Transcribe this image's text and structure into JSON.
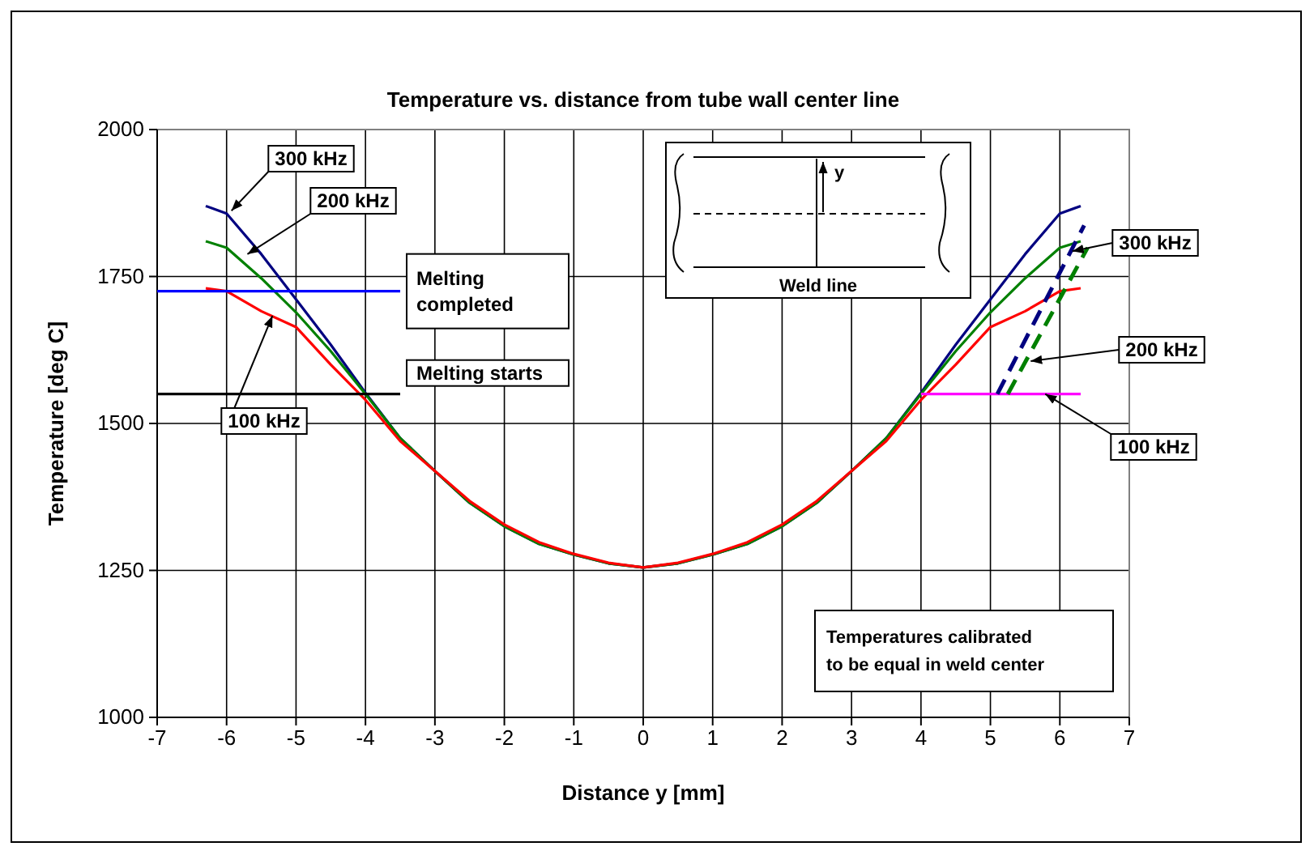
{
  "chart_data": {
    "type": "line",
    "title": "Temperature vs. distance from tube wall center line",
    "xlabel": "Distance y [mm]",
    "ylabel": "Temperature [deg C]",
    "xlim": [
      -7,
      7
    ],
    "xticks": [
      -7,
      -6,
      -5,
      -4,
      -3,
      -2,
      -1,
      0,
      1,
      2,
      3,
      4,
      5,
      6,
      7
    ],
    "ylim": [
      1000,
      2000
    ],
    "yticks": [
      1000,
      1250,
      1500,
      1750,
      2000
    ],
    "grid": true,
    "series": [
      {
        "color": "#000080",
        "x": [
          -6.3,
          -6,
          -5.5,
          -5,
          -4.5,
          -4,
          -3.5,
          -3,
          -2.5,
          -2,
          -1.5,
          -1,
          -0.5,
          0,
          0.5,
          1,
          1.5,
          2,
          2.5,
          3,
          3.5,
          4,
          4.5,
          5,
          5.5,
          6,
          6.3
        ],
        "values": [
          1870,
          1857,
          1788,
          1711,
          1634,
          1552,
          1475,
          1419,
          1365,
          1325,
          1295,
          1277,
          1262,
          1255,
          1262,
          1277,
          1295,
          1325,
          1365,
          1419,
          1475,
          1552,
          1634,
          1711,
          1788,
          1857,
          1870
        ]
      },
      {
        "color": "#008000",
        "x": [
          -6.3,
          -6,
          -5.5,
          -5,
          -4.5,
          -4,
          -3.5,
          -3,
          -2.5,
          -2,
          -1.5,
          -1,
          -0.5,
          0,
          0.5,
          1,
          1.5,
          2,
          2.5,
          3,
          3.5,
          4,
          4.5,
          5,
          5.5,
          6,
          6.3
        ],
        "values": [
          1810,
          1799,
          1747,
          1689,
          1623,
          1550,
          1475,
          1419,
          1365,
          1325,
          1295,
          1277,
          1262,
          1255,
          1262,
          1277,
          1295,
          1325,
          1365,
          1419,
          1475,
          1550,
          1623,
          1689,
          1747,
          1799,
          1810
        ]
      },
      {
        "color": "#ff0000",
        "x": [
          -6.3,
          -6,
          -5.5,
          -5,
          -4.5,
          -4,
          -3.5,
          -3,
          -2.5,
          -2,
          -1.5,
          -1,
          -0.5,
          0,
          0.5,
          1,
          1.5,
          2,
          2.5,
          3,
          3.5,
          4,
          4.5,
          5,
          5.5,
          6,
          6.3
        ],
        "values": [
          1730,
          1725,
          1691,
          1664,
          1600,
          1540,
          1470,
          1419,
          1368,
          1328,
          1298,
          1278,
          1263,
          1255,
          1263,
          1278,
          1298,
          1328,
          1368,
          1419,
          1470,
          1540,
          1600,
          1664,
          1691,
          1725,
          1730
        ]
      },
      {
        "color": "#0000ff",
        "x": [
          -7,
          -3.5
        ],
        "values": [
          1725,
          1725
        ]
      },
      {
        "color": "#000000",
        "x": [
          -7,
          -3.5
        ],
        "values": [
          1550,
          1550
        ]
      },
      {
        "color": "#ff00ff",
        "x": [
          4,
          6.3
        ],
        "values": [
          1550,
          1550
        ]
      },
      {
        "color": "#000080",
        "line_style": "dashed",
        "x": [
          5.1,
          6.35
        ],
        "values": [
          1550,
          1837
        ]
      },
      {
        "color": "#008000",
        "line_style": "dashed",
        "x": [
          5.25,
          6.4
        ],
        "values": [
          1550,
          1799
        ]
      }
    ],
    "annotations": [
      {
        "text": "300 kHz",
        "x": -5.93,
        "y": 1862
      },
      {
        "text": "200 kHz",
        "x": -5.7,
        "y": 1788
      },
      {
        "text": "100 kHz",
        "x": -5.34,
        "y": 1683
      },
      {
        "text": "300 kHz",
        "x": 6.18,
        "y": 1793
      },
      {
        "text": "200 kHz",
        "x": 5.58,
        "y": 1606
      },
      {
        "text": "100 kHz",
        "x": 5.79,
        "y": 1550
      },
      {
        "text": "Melting completed",
        "x": -3.5,
        "y": 1725
      },
      {
        "text": "Melting starts",
        "x": -3.5,
        "y": 1550
      },
      "Temperatures calibrated to be equal in weld center",
      "Weld line",
      "y"
    ]
  }
}
